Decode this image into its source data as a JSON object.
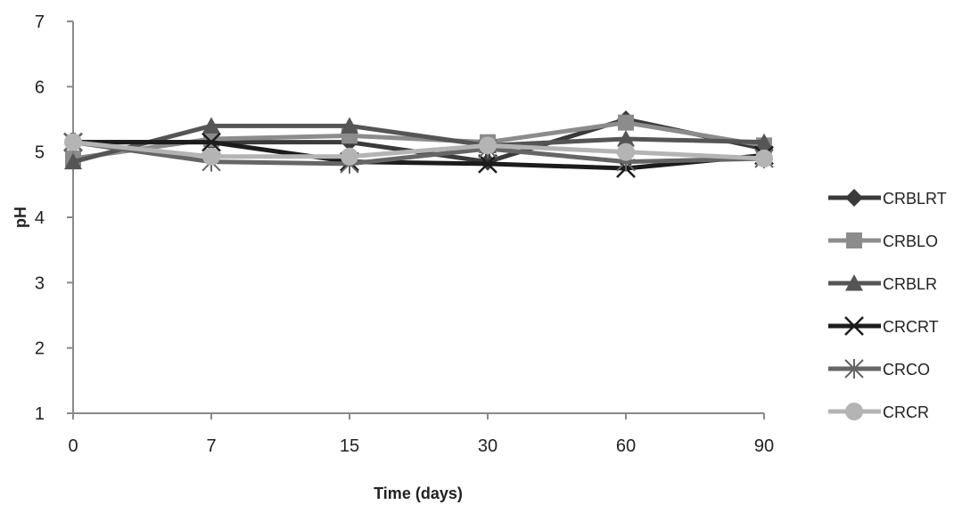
{
  "chart_data": {
    "type": "line",
    "title": "",
    "xlabel": "Time (days)",
    "ylabel": "pH",
    "categories": [
      "0",
      "7",
      "15",
      "30",
      "60",
      "90"
    ],
    "ylim": [
      1,
      7
    ],
    "yticks": [
      "1",
      "2",
      "3",
      "4",
      "5",
      "6",
      "7"
    ],
    "legend_position": "right",
    "grid": false,
    "series": [
      {
        "name": "CRBLRT",
        "values": [
          5.15,
          5.15,
          5.15,
          4.85,
          5.5,
          5.05
        ],
        "color": "#3a3a3a",
        "marker": "diamond",
        "error_bars": [
          0.12,
          0,
          0,
          0.12,
          0,
          0.12
        ]
      },
      {
        "name": "CRBLO",
        "values": [
          4.9,
          5.2,
          5.25,
          5.15,
          5.45,
          5.1
        ],
        "color": "#8c8c8c",
        "marker": "square"
      },
      {
        "name": "CRBLR",
        "values": [
          4.85,
          5.4,
          5.4,
          5.1,
          5.2,
          5.15
        ],
        "color": "#555555",
        "marker": "triangle"
      },
      {
        "name": "CRCRT",
        "values": [
          5.15,
          5.15,
          4.85,
          4.82,
          4.75,
          4.95
        ],
        "color": "#1c1c1c",
        "marker": "x"
      },
      {
        "name": "CRCO",
        "values": [
          5.15,
          4.85,
          4.82,
          5.05,
          4.85,
          4.9
        ],
        "color": "#666666",
        "marker": "star"
      },
      {
        "name": "CRCR",
        "values": [
          5.15,
          4.93,
          4.93,
          5.1,
          5.0,
          4.9
        ],
        "color": "#b4b4b4",
        "marker": "circle"
      }
    ]
  }
}
